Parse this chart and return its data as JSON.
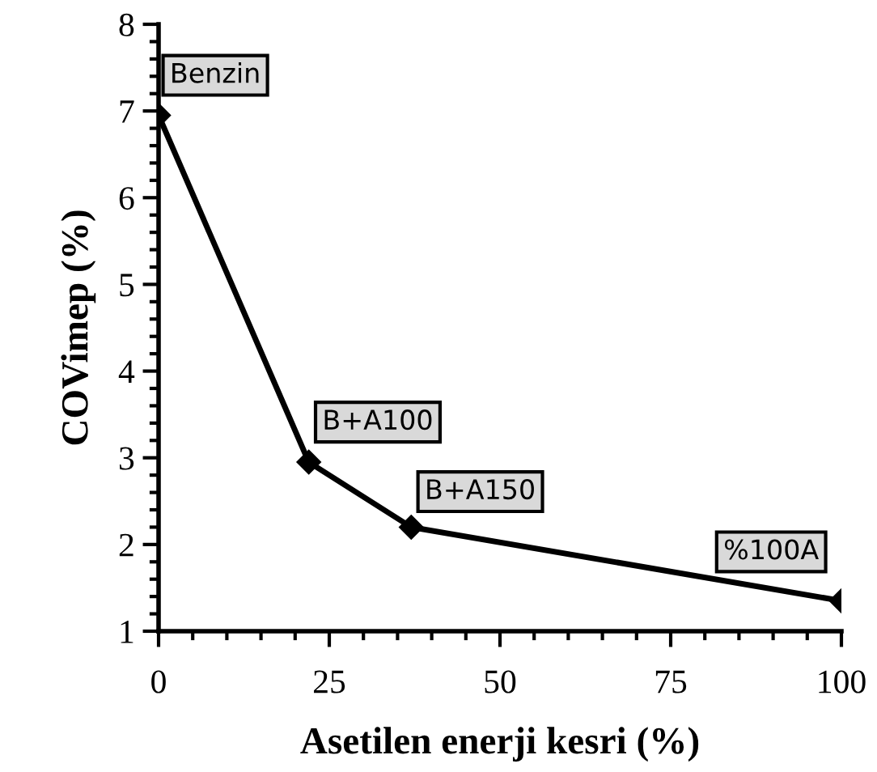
{
  "chart_data": {
    "type": "line",
    "xlabel": "Asetilen enerji kesri (%)",
    "ylabel": "COVimep (%)",
    "x": [
      0,
      22,
      37,
      100
    ],
    "series": [
      {
        "color": "#000000",
        "values": [
          6.95,
          2.95,
          2.2,
          1.35
        ]
      }
    ],
    "marker": "diamond",
    "line_style": "solid",
    "grid": false,
    "legend": false,
    "xlim": [
      0,
      100
    ],
    "ylim": [
      1,
      8
    ],
    "xticks": [
      0,
      {
        "value": 5,
        "label": null
      },
      {
        "value": 10,
        "label": null
      },
      {
        "value": 15,
        "label": null
      },
      {
        "value": 20,
        "label": null
      },
      25,
      {
        "value": 30,
        "label": null
      },
      {
        "value": 35,
        "label": null
      },
      {
        "value": 40,
        "label": null
      },
      {
        "value": 45,
        "label": null
      },
      50,
      {
        "value": 55,
        "label": null
      },
      {
        "value": 60,
        "label": null
      },
      {
        "value": 65,
        "label": null
      },
      {
        "value": 70,
        "label": null
      },
      75,
      {
        "value": 80,
        "label": null
      },
      {
        "value": 85,
        "label": null
      },
      {
        "value": 90,
        "label": null
      },
      {
        "value": 95,
        "label": null
      },
      100
    ],
    "yticks": [
      1,
      {
        "value": 1.2,
        "label": null
      },
      {
        "value": 1.4,
        "label": null
      },
      {
        "value": 1.6,
        "label": null
      },
      {
        "value": 1.8,
        "label": null
      },
      2,
      {
        "value": 2.2,
        "label": null
      },
      {
        "value": 2.4,
        "label": null
      },
      {
        "value": 2.6,
        "label": null
      },
      {
        "value": 2.8,
        "label": null
      },
      3,
      {
        "value": 3.2,
        "label": null
      },
      {
        "value": 3.4,
        "label": null
      },
      {
        "value": 3.6,
        "label": null
      },
      {
        "value": 3.8,
        "label": null
      },
      4,
      {
        "value": 4.2,
        "label": null
      },
      {
        "value": 4.4,
        "label": null
      },
      {
        "value": 4.6,
        "label": null
      },
      {
        "value": 4.8,
        "label": null
      },
      5,
      {
        "value": 5.2,
        "label": null
      },
      {
        "value": 5.4,
        "label": null
      },
      {
        "value": 5.6,
        "label": null
      },
      {
        "value": 5.8,
        "label": null
      },
      6,
      {
        "value": 6.2,
        "label": null
      },
      {
        "value": 6.4,
        "label": null
      },
      {
        "value": 6.6,
        "label": null
      },
      {
        "value": 6.8,
        "label": null
      },
      7,
      {
        "value": 7.2,
        "label": null
      },
      {
        "value": 7.4,
        "label": null
      },
      {
        "value": 7.6,
        "label": null
      },
      {
        "value": 7.8,
        "label": null
      },
      8
    ],
    "annotations": [
      {
        "text": "Benzin",
        "x": 0,
        "y": 6.95
      },
      {
        "text": "B+A100",
        "x": 22,
        "y": 2.95
      },
      {
        "text": "B+A150",
        "x": 37,
        "y": 2.2
      },
      {
        "text": "%100A",
        "x": 100,
        "y": 1.35
      }
    ]
  }
}
